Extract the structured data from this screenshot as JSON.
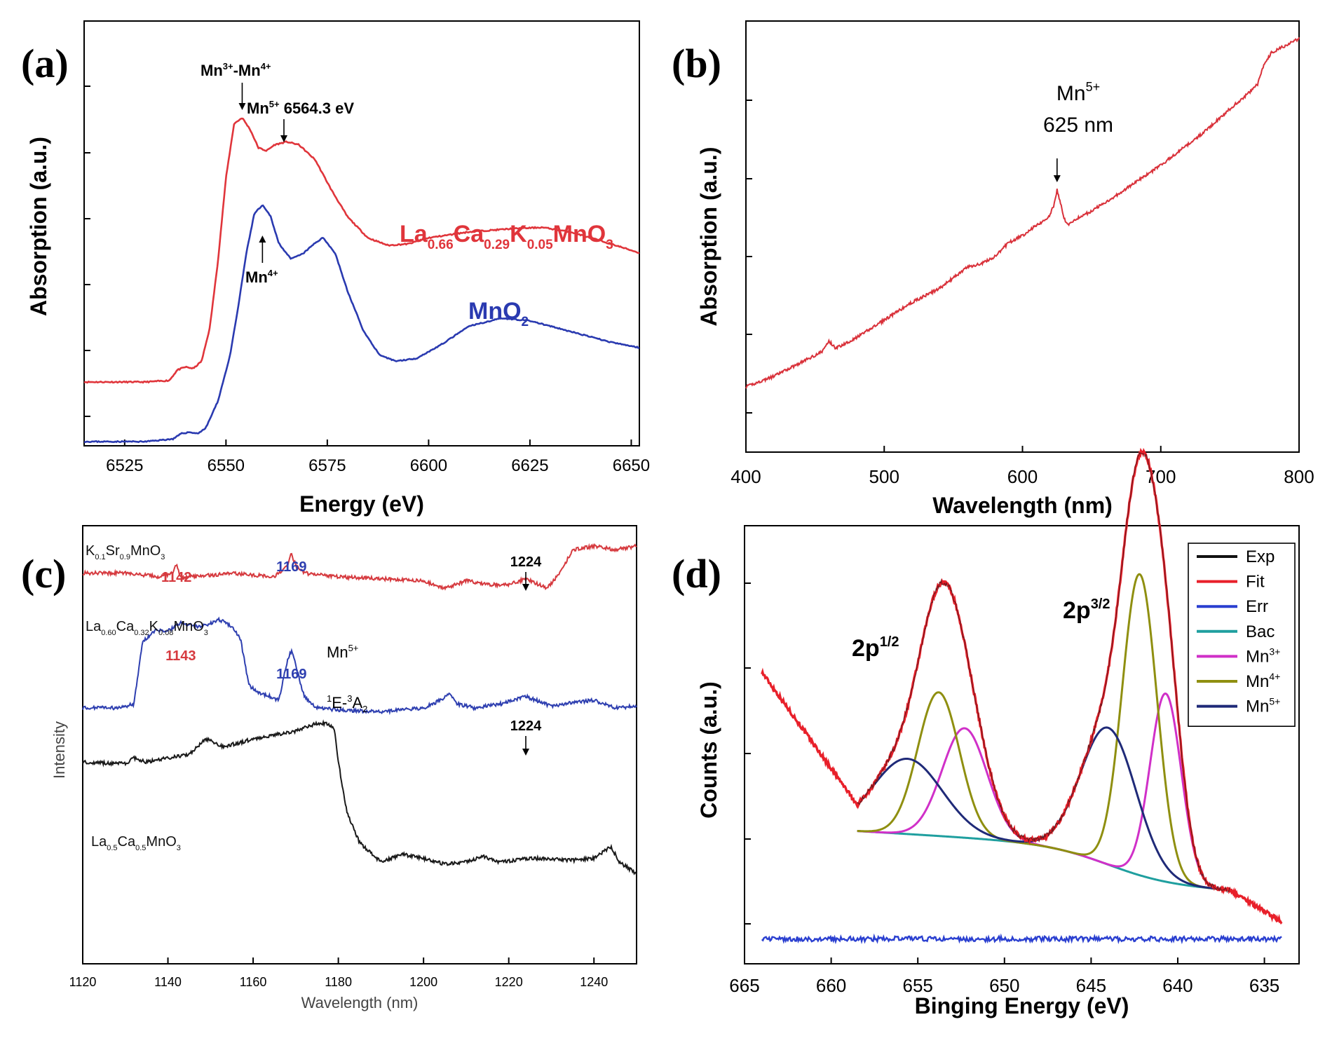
{
  "chart_data": [
    {
      "panel": "(a)",
      "type": "line",
      "xlabel": "Energy (eV)",
      "ylabel": "Absorption (a.u.)",
      "xlim": [
        6515,
        6652
      ],
      "xticks": [
        6525,
        6550,
        6575,
        6600,
        6625,
        6650
      ],
      "series": [
        {
          "name": "La0.66Ca0.29K0.05MnO3",
          "label_main": "La",
          "label_parts": [
            [
              "0.66",
              "Ca"
            ],
            [
              "0.29",
              "K"
            ],
            [
              "0.05",
              "MnO"
            ],
            [
              "3",
              ""
            ]
          ],
          "color": "#e0353b",
          "x": [
            6515,
            6530,
            6536,
            6538,
            6540,
            6542,
            6544,
            6546,
            6548,
            6550,
            6552,
            6554,
            6556,
            6558,
            6560,
            6562,
            6565,
            6568,
            6572,
            6576,
            6580,
            6585,
            6590,
            6595,
            6600,
            6610,
            6620,
            6628,
            6635,
            6645,
            6652
          ],
          "y": [
            0.12,
            0.12,
            0.125,
            0.16,
            0.17,
            0.165,
            0.19,
            0.3,
            0.52,
            0.8,
            0.98,
            1.0,
            0.96,
            0.9,
            0.89,
            0.91,
            0.92,
            0.91,
            0.86,
            0.76,
            0.67,
            0.6,
            0.575,
            0.58,
            0.6,
            0.62,
            0.63,
            0.635,
            0.62,
            0.58,
            0.55
          ]
        },
        {
          "name": "MnO2",
          "label_main": "MnO",
          "label_parts": [
            [
              "2",
              ""
            ]
          ],
          "color": "#2a3ab0",
          "x": [
            6515,
            6530,
            6537,
            6539,
            6541,
            6543,
            6545,
            6548,
            6551,
            6553,
            6555,
            6557,
            6559,
            6561,
            6563,
            6566,
            6569,
            6572,
            6574,
            6577,
            6580,
            6584,
            6588,
            6592,
            6597,
            6603,
            6610,
            6618,
            6625,
            6635,
            6645,
            6652
          ],
          "y": [
            0.0,
            0.0,
            0.01,
            0.03,
            0.035,
            0.03,
            0.05,
            0.15,
            0.32,
            0.5,
            0.7,
            0.85,
            0.88,
            0.84,
            0.74,
            0.68,
            0.7,
            0.74,
            0.76,
            0.7,
            0.56,
            0.41,
            0.32,
            0.3,
            0.31,
            0.36,
            0.43,
            0.46,
            0.45,
            0.41,
            0.37,
            0.35
          ]
        }
      ],
      "annotations": [
        {
          "base": "Mn",
          "sup": "3+",
          "mid": "-Mn",
          "sup2": "4+",
          "x": 6554
        },
        {
          "base": "Mn",
          "sup": "5+",
          "after": " 6564.3 eV",
          "x": 6564.3
        },
        {
          "base": "Mn",
          "sup": "4+",
          "x": 6559
        }
      ]
    },
    {
      "panel": "(b)",
      "type": "line",
      "xlabel": "Wavelength (nm)",
      "ylabel": "Absorption (a.u.)",
      "xlim": [
        400,
        800
      ],
      "xticks": [
        400,
        500,
        600,
        700,
        800
      ],
      "series": [
        {
          "color": "#d9313a",
          "x": [
            400,
            420,
            440,
            455,
            460,
            465,
            480,
            500,
            520,
            540,
            550,
            560,
            570,
            580,
            590,
            600,
            610,
            615,
            620,
            623,
            625,
            627,
            630,
            633,
            636,
            640,
            650,
            670,
            700,
            730,
            750,
            765,
            770,
            775,
            780,
            790,
            800
          ],
          "y": [
            0.0,
            0.03,
            0.07,
            0.1,
            0.13,
            0.11,
            0.14,
            0.19,
            0.24,
            0.28,
            0.31,
            0.34,
            0.35,
            0.37,
            0.41,
            0.43,
            0.46,
            0.47,
            0.49,
            0.52,
            0.56,
            0.53,
            0.48,
            0.46,
            0.47,
            0.48,
            0.5,
            0.55,
            0.63,
            0.72,
            0.79,
            0.84,
            0.86,
            0.92,
            0.95,
            0.97,
            0.99
          ]
        }
      ],
      "annotations": [
        {
          "base": "Mn",
          "sup": "5+",
          "line2": "625 nm",
          "x": 625
        }
      ]
    },
    {
      "panel": "(c)",
      "type": "line",
      "xlabel": "Wavelength (nm)",
      "ylabel": "Intensity",
      "xlim": [
        1120,
        1250
      ],
      "xticks": [
        1120,
        1140,
        1160,
        1180,
        1200,
        1220,
        1240
      ],
      "series": [
        {
          "name": "K0.1Sr0.9MnO3",
          "label_main": "K",
          "label_parts": [
            [
              "0.1",
              "Sr"
            ],
            [
              "0.9",
              "MnO"
            ],
            [
              "3",
              ""
            ]
          ],
          "color": "#d63a3f",
          "x": [
            1120,
            1130,
            1138,
            1141,
            1142,
            1143,
            1146,
            1155,
            1165,
            1168,
            1169,
            1170,
            1172,
            1180,
            1190,
            1200,
            1205,
            1210,
            1215,
            1220,
            1224,
            1227,
            1229,
            1232,
            1235,
            1240,
            1245,
            1250
          ],
          "y": [
            0.95,
            0.95,
            0.94,
            0.95,
            0.97,
            0.94,
            0.94,
            0.95,
            0.94,
            0.97,
            1.0,
            0.97,
            0.95,
            0.94,
            0.935,
            0.93,
            0.91,
            0.93,
            0.92,
            0.92,
            0.935,
            0.92,
            0.91,
            0.95,
            1.01,
            1.02,
            1.01,
            1.02
          ]
        },
        {
          "name": "La0.60Ca0.32K0.08MnO3",
          "label_main": "La",
          "label_parts": [
            [
              "0.60",
              "Ca"
            ],
            [
              "0.32",
              "K"
            ],
            [
              "0.08",
              "MnO"
            ],
            [
              "3",
              ""
            ]
          ],
          "color": "#2e3fb0",
          "x": [
            1120,
            1128,
            1132,
            1134,
            1137,
            1140,
            1143,
            1147,
            1150,
            1152,
            1155,
            1157,
            1159,
            1161,
            1164,
            1166,
            1168,
            1169,
            1170,
            1172,
            1175,
            1180,
            1190,
            1200,
            1204,
            1206,
            1208,
            1212,
            1218,
            1224,
            1230,
            1236,
            1240,
            1245,
            1250
          ],
          "y": [
            0.6,
            0.6,
            0.61,
            0.77,
            0.8,
            0.8,
            0.82,
            0.81,
            0.82,
            0.83,
            0.81,
            0.78,
            0.66,
            0.64,
            0.63,
            0.62,
            0.72,
            0.75,
            0.71,
            0.63,
            0.6,
            0.595,
            0.59,
            0.6,
            0.62,
            0.64,
            0.61,
            0.6,
            0.61,
            0.63,
            0.605,
            0.615,
            0.62,
            0.6,
            0.605
          ]
        },
        {
          "name": "La0.5Ca0.5MnO3",
          "label_main": "La",
          "label_parts": [
            [
              "0.5",
              "Ca"
            ],
            [
              "0.5",
              "MnO"
            ],
            [
              "3",
              ""
            ]
          ],
          "color": "#1a1a1a",
          "x": [
            1120,
            1130,
            1132,
            1135,
            1140,
            1145,
            1149,
            1153,
            1157,
            1160,
            1165,
            1170,
            1175,
            1177,
            1179,
            1180,
            1182,
            1185,
            1188,
            1190,
            1195,
            1200,
            1205,
            1210,
            1214,
            1218,
            1225,
            1235,
            1240,
            1244,
            1246,
            1250
          ],
          "y": [
            0.46,
            0.455,
            0.47,
            0.46,
            0.47,
            0.48,
            0.52,
            0.5,
            0.51,
            0.52,
            0.53,
            0.54,
            0.56,
            0.56,
            0.55,
            0.46,
            0.33,
            0.25,
            0.22,
            0.2,
            0.22,
            0.21,
            0.195,
            0.2,
            0.215,
            0.2,
            0.21,
            0.205,
            0.21,
            0.24,
            0.2,
            0.17
          ]
        }
      ],
      "annotations": [
        {
          "text": "1142",
          "color": "#d63a3f",
          "x": 1142
        },
        {
          "text": "1169",
          "color": "#2e3fb0",
          "x": 1169
        },
        {
          "text": "1224",
          "color": "#000000",
          "x": 1224
        },
        {
          "text": "1143",
          "color": "#d63a3f",
          "x": 1143
        },
        {
          "text": "1169",
          "color": "#2e3fb0",
          "x": 1169
        },
        {
          "text": "1224",
          "color": "#000000",
          "x": 1224
        },
        {
          "base": "Mn",
          "sup": "5+"
        },
        {
          "sup": "1",
          "base": "E-",
          "sup2": "3",
          "base2": "A",
          "sub": "2"
        }
      ]
    },
    {
      "panel": "(d)",
      "type": "line",
      "xlabel": "Binging Energy (eV)",
      "ylabel": "Counts (a.u.)",
      "xlim": [
        665,
        633
      ],
      "xticks": [
        665,
        660,
        655,
        650,
        645,
        640,
        635
      ],
      "peak_labels": [
        {
          "base": "2p",
          "sup": "1/2"
        },
        {
          "base": "2p",
          "sup": "3/2"
        }
      ],
      "legend": {
        "position": "top-right"
      },
      "series": [
        {
          "name": "Exp",
          "color": "#111111"
        },
        {
          "name": "Fit",
          "color": "#e8202a"
        },
        {
          "name": "Err",
          "color": "#2a3fd0"
        },
        {
          "name": "Bac",
          "color": "#1f9f9f"
        },
        {
          "name": "Mn",
          "sup": "3+",
          "color": "#d030c8"
        },
        {
          "name": "Mn",
          "sup": "4+",
          "color": "#8f8f10"
        },
        {
          "name": "Mn",
          "sup": "5+",
          "color": "#1f2a78"
        }
      ],
      "model": {
        "background": {
          "step_low": 0.11,
          "step_high": 0.22,
          "step_center": 644,
          "step_width": 1.8,
          "slope": 0.003
        },
        "components": {
          "Mn3+": [
            {
              "center": 652.3,
              "amp": 0.32,
              "sigma": 1.3
            },
            {
              "center": 640.7,
              "amp": 0.55,
              "sigma": 0.9
            }
          ],
          "Mn4+": [
            {
              "center": 653.8,
              "amp": 0.42,
              "sigma": 1.2
            },
            {
              "center": 642.2,
              "amp": 0.88,
              "sigma": 1.0
            }
          ],
          "Mn5+": [
            {
              "center": 655.6,
              "amp": 0.22,
              "sigma": 2.0
            },
            {
              "center": 644.0,
              "amp": 0.4,
              "sigma": 1.6
            }
          ]
        },
        "fit_extension": {
          "left_x": 664,
          "left_y": 0.74,
          "right_x": 634,
          "right_y": 0.0
        }
      }
    }
  ]
}
